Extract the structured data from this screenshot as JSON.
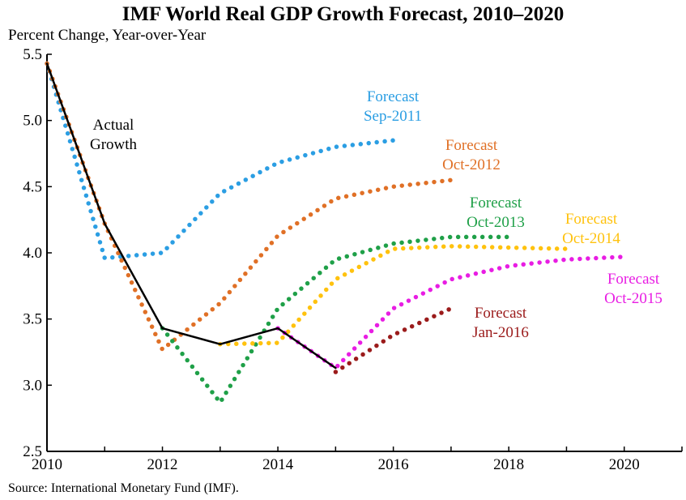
{
  "chart_data": {
    "type": "line",
    "title": "IMF World Real GDP Growth Forecast, 2010–2020",
    "ylabel": "Percent Change, Year-over-Year",
    "source": "Source: International Monetary Fund (IMF).",
    "xlim": [
      2010,
      2021
    ],
    "ylim": [
      2.5,
      5.5
    ],
    "xticks": [
      2010,
      2012,
      2014,
      2016,
      2018,
      2020
    ],
    "yticks": [
      2.5,
      3.0,
      3.5,
      4.0,
      4.5,
      5.0,
      5.5
    ],
    "grid": false,
    "series": [
      {
        "name": "Actual Growth",
        "label_lines": [
          "Actual",
          "Growth"
        ],
        "color": "#000000",
        "style": "solid",
        "points": [
          [
            2010,
            5.43
          ],
          [
            2011,
            4.22
          ],
          [
            2012,
            3.43
          ],
          [
            2013,
            3.31
          ],
          [
            2014,
            3.43
          ],
          [
            2015,
            3.13
          ]
        ]
      },
      {
        "name": "Forecast Sep-2011",
        "label_lines": [
          "Forecast",
          "Sep-2011"
        ],
        "color": "#2b9ee3",
        "style": "dotted",
        "points": [
          [
            2010,
            5.43
          ],
          [
            2011,
            3.96
          ],
          [
            2012,
            4.0
          ],
          [
            2013,
            4.45
          ],
          [
            2014,
            4.68
          ],
          [
            2015,
            4.8
          ],
          [
            2016,
            4.85
          ]
        ]
      },
      {
        "name": "Forecast Oct-2012",
        "label_lines": [
          "Forecast",
          "Oct-2012"
        ],
        "color": "#e07026",
        "style": "dotted",
        "points": [
          [
            2010,
            5.43
          ],
          [
            2011,
            4.22
          ],
          [
            2012,
            3.27
          ],
          [
            2013,
            3.62
          ],
          [
            2014,
            4.13
          ],
          [
            2015,
            4.41
          ],
          [
            2016,
            4.5
          ],
          [
            2017,
            4.55
          ]
        ]
      },
      {
        "name": "Forecast Oct-2013",
        "label_lines": [
          "Forecast",
          "Oct-2013"
        ],
        "color": "#1fa048",
        "style": "dotted",
        "points": [
          [
            2012,
            3.43
          ],
          [
            2013,
            2.87
          ],
          [
            2014,
            3.58
          ],
          [
            2015,
            3.95
          ],
          [
            2016,
            4.07
          ],
          [
            2017,
            4.12
          ],
          [
            2018,
            4.12
          ]
        ]
      },
      {
        "name": "Forecast Oct-2014",
        "label_lines": [
          "Forecast",
          "Oct-2014"
        ],
        "color": "#ffc20e",
        "style": "dotted",
        "points": [
          [
            2013,
            3.31
          ],
          [
            2014,
            3.32
          ],
          [
            2015,
            3.8
          ],
          [
            2016,
            4.03
          ],
          [
            2017,
            4.05
          ],
          [
            2018,
            4.04
          ],
          [
            2019,
            4.03
          ]
        ]
      },
      {
        "name": "Forecast Oct-2015",
        "label_lines": [
          "Forecast",
          "Oct-2015"
        ],
        "color": "#e81de3",
        "style": "dotted",
        "points": [
          [
            2014,
            3.43
          ],
          [
            2015,
            3.13
          ],
          [
            2016,
            3.58
          ],
          [
            2017,
            3.8
          ],
          [
            2018,
            3.9
          ],
          [
            2019,
            3.95
          ],
          [
            2020,
            3.97
          ]
        ]
      },
      {
        "name": "Forecast Jan-2016",
        "label_lines": [
          "Forecast",
          "Jan-2016"
        ],
        "color": "#9b1b1b",
        "style": "dotted",
        "points": [
          [
            2015,
            3.1
          ],
          [
            2016,
            3.38
          ],
          [
            2017,
            3.58
          ]
        ]
      }
    ]
  }
}
